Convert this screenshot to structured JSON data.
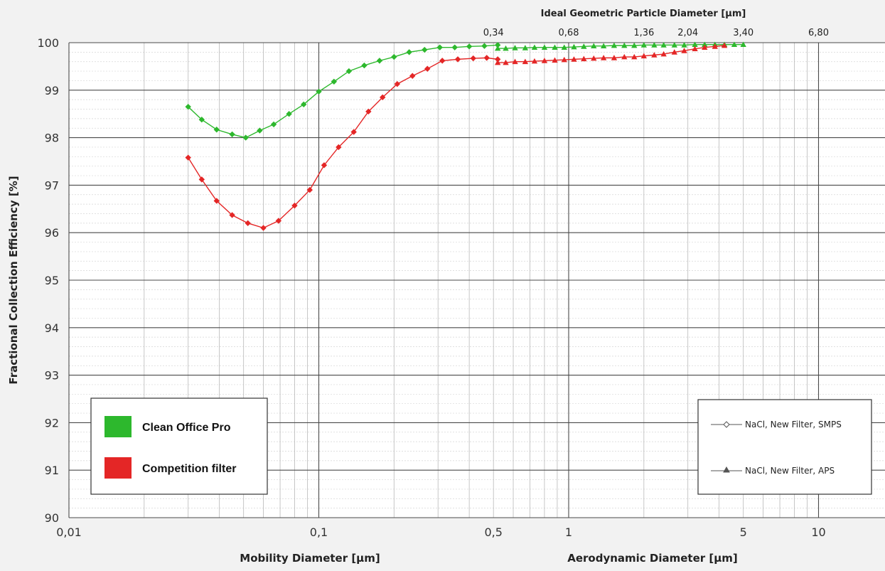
{
  "chart_data": {
    "type": "line",
    "x_axis": {
      "scale": "log",
      "range": [
        0.01,
        20
      ],
      "tick_values": [
        0.01,
        0.1,
        0.5,
        1,
        5,
        10
      ],
      "tick_labels": [
        "0,01",
        "0,1",
        "0,5",
        "1",
        "5",
        "10"
      ],
      "title_left": "Mobility Diameter [µm]",
      "title_right": "Aerodynamic Diameter [µm]"
    },
    "top_axis": {
      "title": "Ideal Geometric Particle Diameter [µm]",
      "tick_positions": [
        0.5,
        1,
        2,
        3,
        5,
        10
      ],
      "tick_labels": [
        "0,34",
        "0,68",
        "1,36",
        "2,04",
        "3,40",
        "6,80"
      ]
    },
    "y_axis": {
      "title": "Fractional Collection Efficiency [%]",
      "range": [
        90,
        100
      ],
      "tick_values": [
        90,
        91,
        92,
        93,
        94,
        95,
        96,
        97,
        98,
        99,
        100
      ],
      "tick_labels": [
        "90",
        "91",
        "92",
        "93",
        "94",
        "95",
        "96",
        "97",
        "98",
        "99",
        "100"
      ]
    },
    "grid": true,
    "series": [
      {
        "name": "Clean Office Pro",
        "color": "#2db82d",
        "smps": {
          "x": [
            0.03,
            0.034,
            0.039,
            0.045,
            0.051,
            0.058,
            0.066,
            0.076,
            0.087,
            0.1,
            0.115,
            0.132,
            0.152,
            0.175,
            0.2,
            0.23,
            0.265,
            0.305,
            0.35,
            0.4,
            0.46,
            0.52
          ],
          "y": [
            98.65,
            98.38,
            98.17,
            98.07,
            98.0,
            98.15,
            98.28,
            98.5,
            98.7,
            98.97,
            99.18,
            99.4,
            99.52,
            99.62,
            99.7,
            99.8,
            99.85,
            99.9,
            99.9,
            99.92,
            99.93,
            99.95
          ]
        },
        "aps": {
          "x": [
            0.52,
            0.56,
            0.61,
            0.67,
            0.73,
            0.8,
            0.88,
            0.96,
            1.05,
            1.15,
            1.26,
            1.38,
            1.52,
            1.67,
            1.83,
            2.0,
            2.2,
            2.4,
            2.65,
            2.9,
            3.2,
            3.5,
            3.85,
            4.2,
            4.6,
            5.0
          ],
          "y": [
            99.88,
            99.88,
            99.89,
            99.89,
            99.9,
            99.9,
            99.9,
            99.9,
            99.91,
            99.92,
            99.93,
            99.93,
            99.94,
            99.94,
            99.94,
            99.95,
            99.95,
            99.95,
            99.95,
            99.95,
            99.96,
            99.96,
            99.96,
            99.96,
            99.96,
            99.96
          ]
        }
      },
      {
        "name": "Competition filter",
        "color": "#e42626",
        "smps": {
          "x": [
            0.03,
            0.034,
            0.039,
            0.045,
            0.052,
            0.06,
            0.069,
            0.08,
            0.092,
            0.105,
            0.12,
            0.138,
            0.158,
            0.18,
            0.206,
            0.237,
            0.272,
            0.312,
            0.36,
            0.415,
            0.47,
            0.52
          ],
          "y": [
            97.58,
            97.12,
            96.67,
            96.37,
            96.2,
            96.1,
            96.25,
            96.57,
            96.9,
            97.42,
            97.8,
            98.12,
            98.55,
            98.85,
            99.13,
            99.3,
            99.45,
            99.62,
            99.65,
            99.67,
            99.68,
            99.65
          ]
        },
        "aps": {
          "x": [
            0.52,
            0.56,
            0.61,
            0.67,
            0.73,
            0.8,
            0.88,
            0.96,
            1.05,
            1.15,
            1.26,
            1.38,
            1.52,
            1.67,
            1.83,
            2.0,
            2.2,
            2.4,
            2.65,
            2.9,
            3.2,
            3.5,
            3.85,
            4.2
          ],
          "y": [
            99.58,
            99.58,
            99.6,
            99.6,
            99.61,
            99.62,
            99.63,
            99.64,
            99.65,
            99.66,
            99.67,
            99.68,
            99.68,
            99.7,
            99.7,
            99.72,
            99.74,
            99.76,
            99.8,
            99.83,
            99.87,
            99.9,
            99.92,
            99.94
          ]
        }
      }
    ],
    "legend_colors": {
      "title": "",
      "items": [
        "Clean Office Pro",
        "Competition filter"
      ],
      "placement": "bottom-left"
    },
    "legend_markers": {
      "items": [
        "NaCl, New Filter, SMPS",
        "NaCl, New Filter, APS"
      ],
      "placement": "bottom-right"
    }
  }
}
